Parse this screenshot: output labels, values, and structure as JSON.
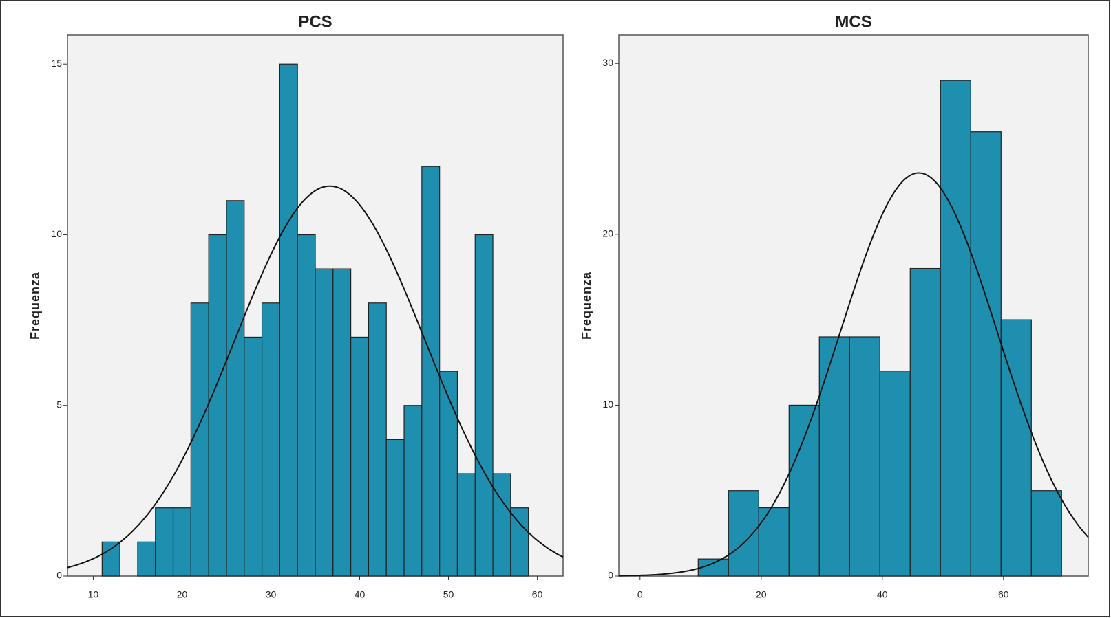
{
  "chart_data": [
    {
      "type": "histogram",
      "title": "PCS",
      "y_label": "Frequenza",
      "color": "#1f8fb0",
      "normal_curve": true,
      "bins": [
        11,
        13,
        15,
        17,
        19,
        21,
        23,
        25,
        27,
        29,
        31,
        33,
        35,
        37,
        39,
        41,
        43,
        45,
        47,
        49,
        51,
        53,
        55,
        57,
        59
      ],
      "values": [
        1,
        0,
        1,
        2,
        2,
        8,
        10,
        11,
        7,
        8,
        15,
        10,
        9,
        9,
        7,
        8,
        4,
        5,
        12,
        6,
        3,
        10,
        3,
        2
      ],
      "xlim": [
        7.1,
        62.9
      ],
      "xticks": [
        10,
        20,
        30,
        40,
        50,
        60
      ],
      "ylim": [
        0,
        15.85
      ],
      "yticks": [
        0,
        5,
        10,
        15
      ]
    },
    {
      "type": "histogram",
      "title": "MCS",
      "y_label": "Frequenza",
      "color": "#1f8fb0",
      "normal_curve": true,
      "bins": [
        9.6,
        14.6,
        19.6,
        24.6,
        29.6,
        34.6,
        39.6,
        44.6,
        49.6,
        54.6,
        59.6,
        64.6,
        69.6
      ],
      "values": [
        1,
        5,
        4,
        10,
        14,
        14,
        12,
        18,
        29,
        26,
        15,
        5
      ],
      "xlim": [
        -3.5,
        74.0
      ],
      "xticks": [
        0,
        20,
        40,
        60
      ],
      "ylim": [
        0,
        31.66
      ],
      "yticks": [
        0,
        10,
        20,
        30
      ]
    }
  ]
}
